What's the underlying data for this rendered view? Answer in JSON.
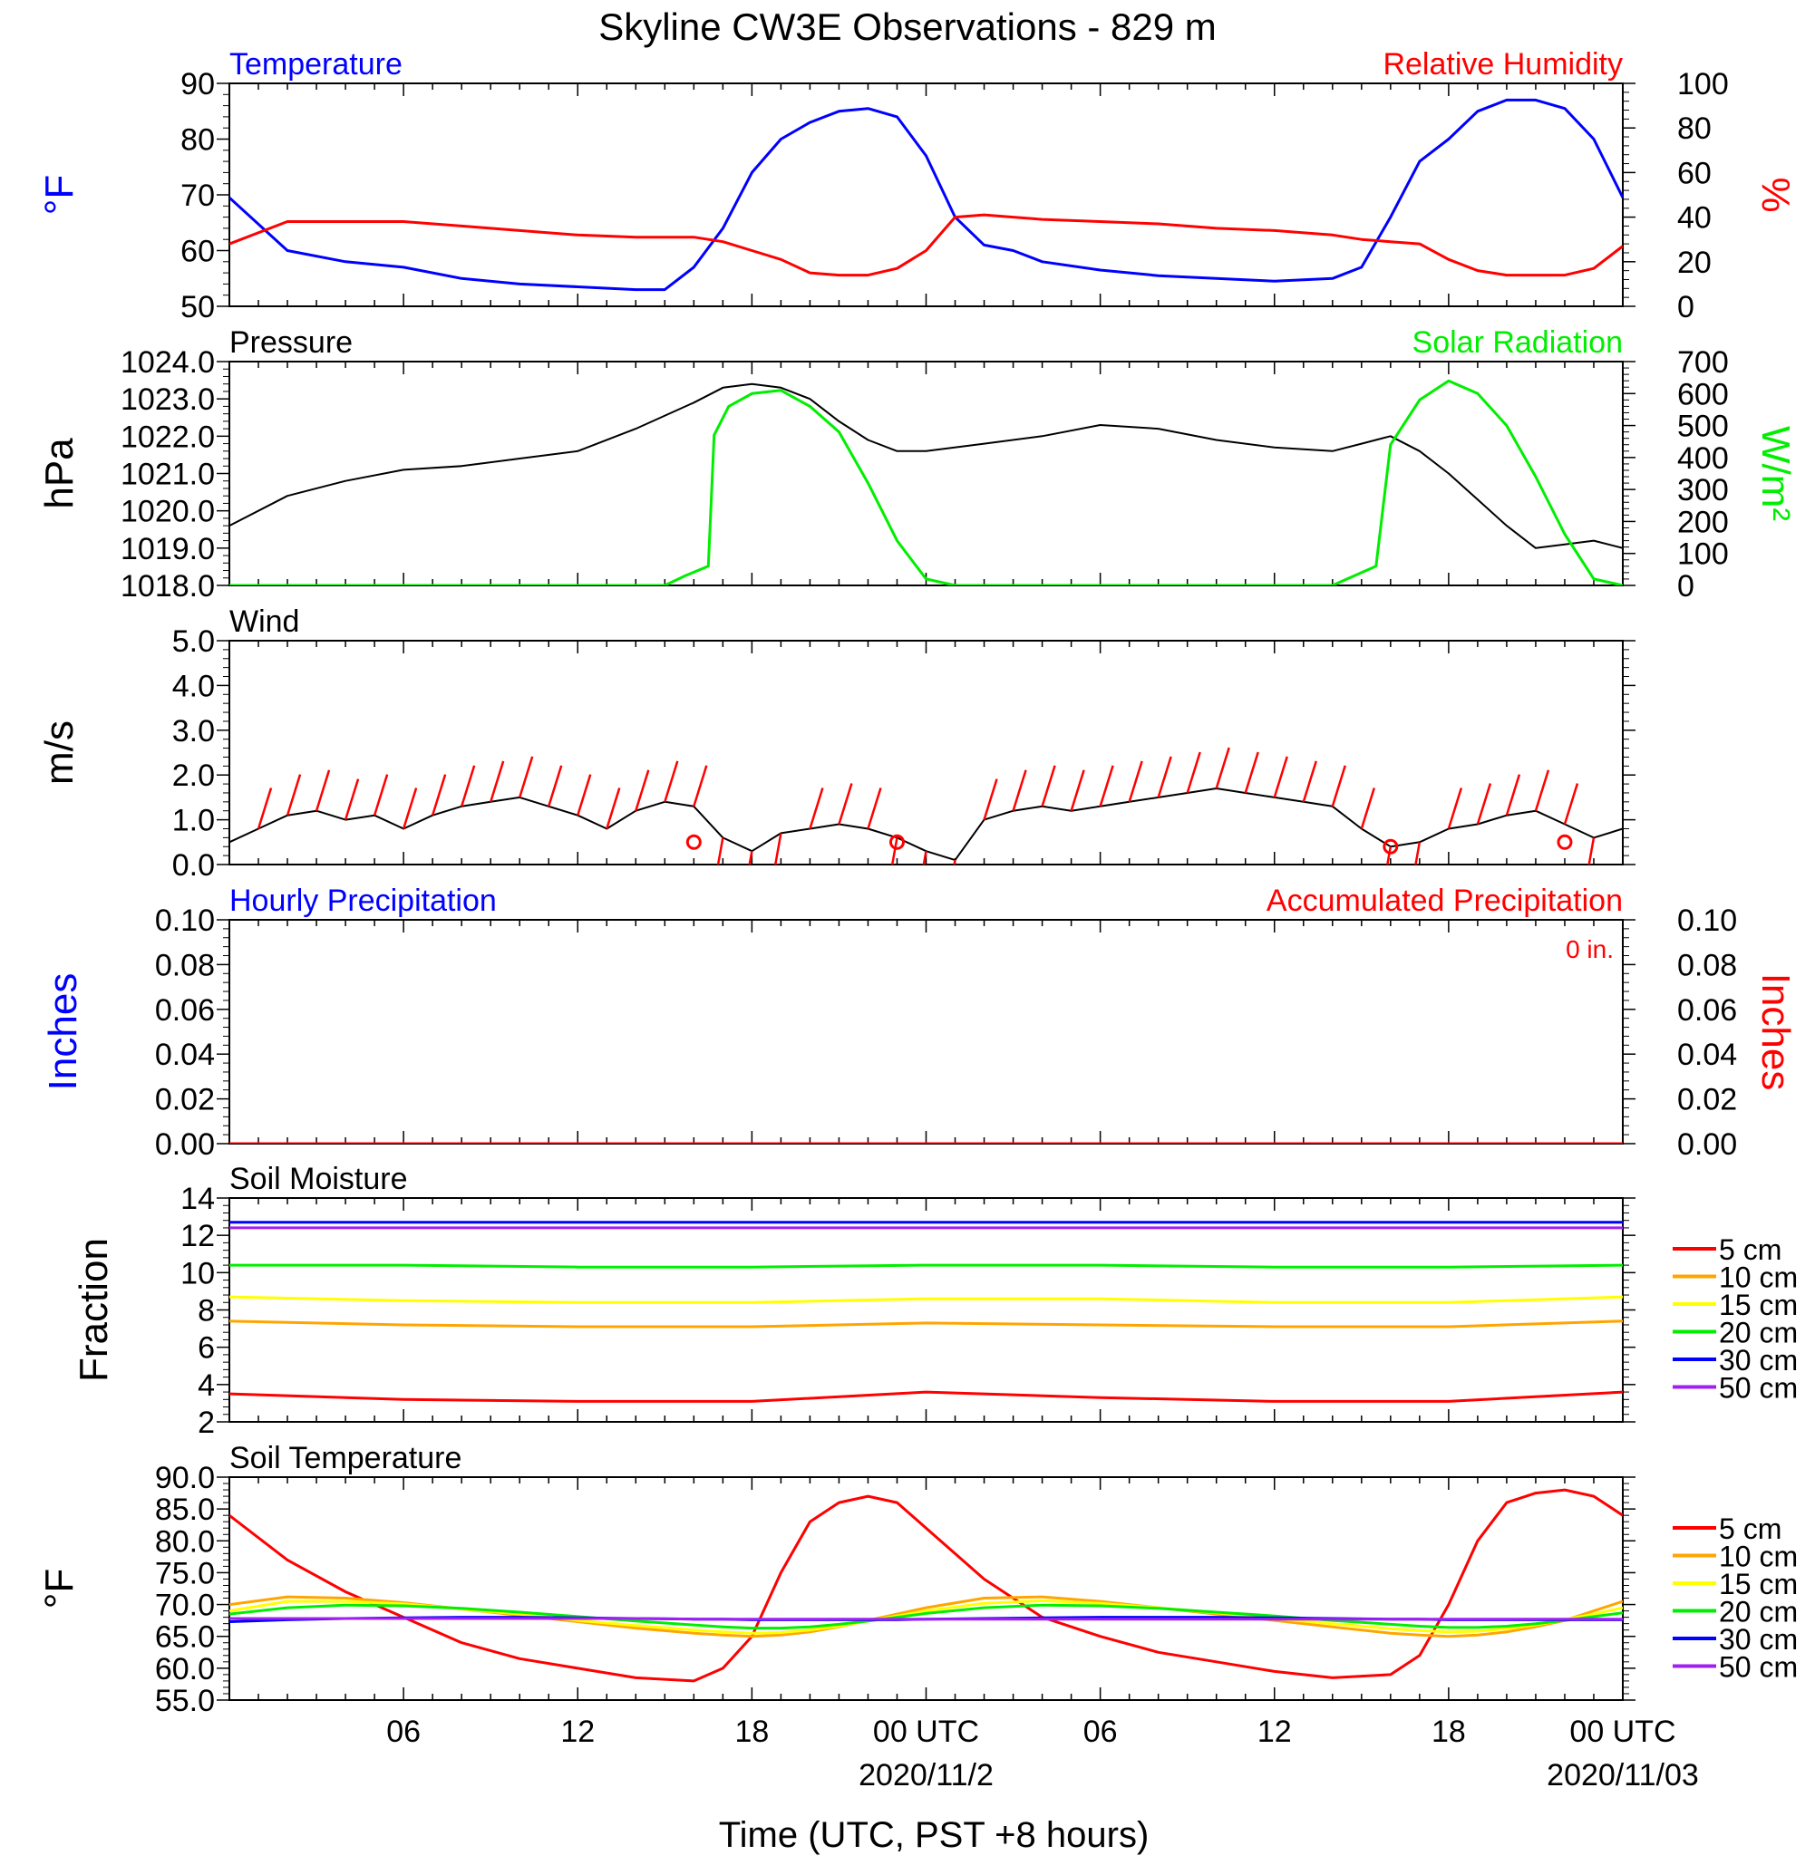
{
  "title": "Skyline CW3E Observations - 829 m",
  "xlabel": "Time (UTC, PST +8 hours)",
  "x_ticks": [
    "06",
    "12",
    "18",
    "00 UTC",
    "06",
    "12",
    "18",
    "00 UTC"
  ],
  "date_labels": [
    "2020/11/2",
    "2020/11/03"
  ],
  "colors": {
    "blue": "#0000ff",
    "red": "#ff0000",
    "green": "#00ee00",
    "black": "#000000",
    "orange": "#ffa500",
    "yellow": "#ffff00",
    "blue30": "#0000ff",
    "purple": "#a020f0"
  },
  "chart_data": [
    {
      "type": "line",
      "panel": "temperature_rh",
      "left_title": "Temperature",
      "right_title": "Relative Humidity",
      "ylabel_left": "°F",
      "ylabel_right": "%",
      "ylim_left": [
        50,
        90
      ],
      "ylim_right": [
        0,
        100
      ],
      "yticks_left": [
        "50",
        "60",
        "70",
        "80",
        "90"
      ],
      "yticks_right": [
        "0",
        "20",
        "40",
        "60",
        "80",
        "100"
      ],
      "x_hours": [
        0,
        2,
        4,
        6,
        8,
        10,
        12,
        14,
        15,
        16,
        17,
        18,
        19,
        20,
        21,
        22,
        23,
        24,
        25,
        26,
        27,
        28,
        30,
        32,
        34,
        36,
        38,
        39,
        40,
        41,
        42,
        43,
        44,
        45,
        46,
        47,
        48
      ],
      "series": [
        {
          "name": "Temperature",
          "axis": "left",
          "color": "blue",
          "values": [
            69.5,
            60,
            58,
            57,
            55,
            54,
            53.5,
            53,
            53,
            57,
            64,
            74,
            80,
            83,
            85,
            85.5,
            84,
            77,
            66,
            61,
            60,
            58,
            56.5,
            55.5,
            55,
            54.5,
            55,
            57,
            66,
            76,
            80,
            85,
            87,
            87,
            85.5,
            80,
            69.5
          ]
        },
        {
          "name": "Relative Humidity",
          "axis": "right",
          "color": "red",
          "values": [
            28,
            38,
            38,
            38,
            36,
            34,
            32,
            31,
            31,
            31,
            29,
            25,
            21,
            15,
            14,
            14,
            17,
            25,
            40,
            41,
            40,
            39,
            38,
            37,
            35,
            34,
            32,
            30,
            29,
            28,
            21,
            16,
            14,
            14,
            14,
            17,
            27
          ]
        }
      ]
    },
    {
      "type": "line",
      "panel": "pressure_solar",
      "left_title": "Pressure",
      "right_title": "Solar Radiation",
      "ylabel_left": "hPa",
      "ylabel_right": "W/m²",
      "ylim_left": [
        1018,
        1024
      ],
      "ylim_right": [
        0,
        700
      ],
      "yticks_left": [
        "1018.0",
        "1019.0",
        "1020.0",
        "1021.0",
        "1022.0",
        "1023.0",
        "1024.0"
      ],
      "yticks_right": [
        "0",
        "100",
        "200",
        "300",
        "400",
        "500",
        "600",
        "700"
      ],
      "x_hours": [
        0,
        2,
        4,
        6,
        8,
        10,
        12,
        14,
        16,
        17,
        18,
        19,
        20,
        21,
        22,
        23,
        24,
        26,
        28,
        30,
        32,
        34,
        36,
        38,
        39,
        40,
        41,
        42,
        43,
        44,
        45,
        46,
        47,
        48
      ],
      "series": [
        {
          "name": "Pressure",
          "axis": "left",
          "color": "black",
          "values": [
            1019.6,
            1020.4,
            1020.8,
            1021.1,
            1021.2,
            1021.4,
            1021.6,
            1022.2,
            1022.9,
            1023.3,
            1023.4,
            1023.3,
            1023.0,
            1022.4,
            1021.9,
            1021.6,
            1021.6,
            1021.8,
            1022.0,
            1022.3,
            1022.2,
            1021.9,
            1021.7,
            1021.6,
            1021.8,
            1022.0,
            1021.6,
            1021.0,
            1020.3,
            1019.6,
            1019.0,
            1019.1,
            1019.2,
            1019.0
          ]
        },
        {
          "name": "Solar Radiation",
          "axis": "right",
          "color": "green",
          "x_hours": [
            0,
            13.5,
            15,
            15.7,
            16.5,
            16.7,
            17.2,
            18,
            19,
            20,
            21,
            22,
            23,
            24,
            25,
            38,
            38.5,
            39.5,
            40,
            41,
            42,
            43,
            44,
            45,
            46,
            47,
            48
          ],
          "values": [
            0,
            0,
            0,
            30,
            60,
            470,
            560,
            600,
            610,
            560,
            480,
            320,
            140,
            20,
            0,
            0,
            20,
            60,
            440,
            580,
            640,
            600,
            500,
            340,
            160,
            20,
            0
          ]
        }
      ]
    },
    {
      "type": "line",
      "panel": "wind",
      "left_title": "Wind",
      "ylabel_left": "m/s",
      "ylim_left": [
        0,
        5
      ],
      "yticks_left": [
        "0.0",
        "1.0",
        "2.0",
        "3.0",
        "4.0",
        "5.0"
      ],
      "x_hours": [
        0,
        1,
        2,
        3,
        4,
        5,
        6,
        7,
        8,
        9,
        10,
        11,
        12,
        13,
        14,
        15,
        16,
        17,
        18,
        19,
        20,
        21,
        22,
        23,
        24,
        25,
        26,
        27,
        28,
        29,
        30,
        31,
        32,
        33,
        34,
        35,
        36,
        37,
        38,
        39,
        40,
        41,
        42,
        43,
        44,
        45,
        46,
        47,
        48
      ],
      "series": [
        {
          "name": "Wind Speed",
          "axis": "left",
          "color": "black",
          "values": [
            0.5,
            0.8,
            1.1,
            1.2,
            1.0,
            1.1,
            0.8,
            1.1,
            1.3,
            1.4,
            1.5,
            1.3,
            1.1,
            0.8,
            1.2,
            1.4,
            1.3,
            0.6,
            0.3,
            0.7,
            0.8,
            0.9,
            0.8,
            0.6,
            0.3,
            0.1,
            1.0,
            1.2,
            1.3,
            1.2,
            1.3,
            1.4,
            1.5,
            1.6,
            1.7,
            1.6,
            1.5,
            1.4,
            1.3,
            0.8,
            0.4,
            0.5,
            0.8,
            0.9,
            1.1,
            1.2,
            0.9,
            0.6,
            0.8
          ]
        }
      ],
      "calm_markers_hours": [
        16,
        23,
        40,
        46
      ]
    },
    {
      "type": "line",
      "panel": "precipitation",
      "left_title": "Hourly Precipitation",
      "right_title": "Accumulated Precipitation",
      "annotation": "0 in.",
      "ylabel_left": "Inches",
      "ylabel_right": "Inches",
      "ylim_left": [
        0,
        0.1
      ],
      "ylim_right": [
        0,
        0.1
      ],
      "yticks_left": [
        "0.00",
        "0.02",
        "0.04",
        "0.06",
        "0.08",
        "0.10"
      ],
      "yticks_right": [
        "0.00",
        "0.02",
        "0.04",
        "0.06",
        "0.08",
        "0.10"
      ],
      "x_hours": [
        0,
        48
      ],
      "series": [
        {
          "name": "Hourly Precipitation",
          "color": "blue",
          "values": [
            0,
            0
          ]
        },
        {
          "name": "Accumulated Precipitation",
          "color": "red",
          "values": [
            0,
            0
          ]
        }
      ]
    },
    {
      "type": "line",
      "panel": "soil_moisture",
      "left_title": "Soil Moisture",
      "ylabel_left": "Fraction",
      "ylim_left": [
        2,
        14
      ],
      "yticks_left": [
        "2",
        "4",
        "6",
        "8",
        "10",
        "12",
        "14"
      ],
      "x_hours": [
        0,
        6,
        12,
        18,
        24,
        30,
        36,
        42,
        48
      ],
      "series": [
        {
          "name": "5 cm",
          "color": "red",
          "values": [
            3.5,
            3.2,
            3.1,
            3.1,
            3.6,
            3.3,
            3.1,
            3.1,
            3.6
          ]
        },
        {
          "name": "10 cm",
          "color": "orange",
          "values": [
            7.4,
            7.2,
            7.1,
            7.1,
            7.3,
            7.2,
            7.1,
            7.1,
            7.4
          ]
        },
        {
          "name": "15 cm",
          "color": "yellow",
          "values": [
            8.7,
            8.5,
            8.4,
            8.4,
            8.6,
            8.6,
            8.4,
            8.4,
            8.7
          ]
        },
        {
          "name": "20 cm",
          "color": "green",
          "values": [
            10.4,
            10.4,
            10.3,
            10.3,
            10.4,
            10.4,
            10.3,
            10.3,
            10.4
          ]
        },
        {
          "name": "30 cm",
          "color": "blue30",
          "values": [
            12.7,
            12.7,
            12.7,
            12.7,
            12.7,
            12.7,
            12.7,
            12.7,
            12.7
          ]
        },
        {
          "name": "50 cm",
          "color": "purple",
          "values": [
            12.4,
            12.4,
            12.4,
            12.4,
            12.4,
            12.4,
            12.4,
            12.4,
            12.4
          ]
        }
      ]
    },
    {
      "type": "line",
      "panel": "soil_temperature",
      "left_title": "Soil Temperature",
      "ylabel_left": "°F",
      "ylim_left": [
        55,
        90
      ],
      "yticks_left": [
        "55.0",
        "60.0",
        "65.0",
        "70.0",
        "75.0",
        "80.0",
        "85.0",
        "90.0"
      ],
      "x_hours": [
        0,
        2,
        4,
        6,
        8,
        10,
        12,
        14,
        16,
        17,
        18,
        19,
        20,
        21,
        22,
        23,
        24,
        26,
        28,
        30,
        32,
        34,
        36,
        38,
        40,
        41,
        42,
        43,
        44,
        45,
        46,
        47,
        48
      ],
      "series": [
        {
          "name": "5 cm",
          "color": "red",
          "values": [
            84,
            77,
            72,
            68,
            64,
            61.5,
            60,
            58.5,
            58,
            60,
            65,
            75,
            83,
            86,
            87,
            86,
            82,
            74,
            68,
            65,
            62.5,
            61,
            59.5,
            58.5,
            59,
            62,
            70,
            80,
            86,
            87.5,
            88,
            87,
            84
          ]
        },
        {
          "name": "10 cm",
          "color": "orange",
          "values": [
            70,
            71.2,
            71,
            70.3,
            69.3,
            68.3,
            67.3,
            66.3,
            65.5,
            65.2,
            65,
            65.2,
            65.7,
            66.5,
            67.5,
            68.5,
            69.5,
            71,
            71.2,
            70.5,
            69.5,
            68.5,
            67.5,
            66.5,
            65.5,
            65.2,
            65,
            65.2,
            65.7,
            66.5,
            67.5,
            69,
            70.5
          ]
        },
        {
          "name": "15 cm",
          "color": "yellow",
          "values": [
            69,
            70.5,
            70.5,
            70.1,
            69.3,
            68.5,
            67.5,
            66.7,
            66,
            65.7,
            65.5,
            65.6,
            66,
            66.6,
            67.4,
            68.2,
            69,
            70.2,
            70.6,
            70.2,
            69.5,
            68.7,
            67.8,
            67,
            66.2,
            65.9,
            65.7,
            65.8,
            66.2,
            66.8,
            67.6,
            68.5,
            69.5
          ]
        },
        {
          "name": "20 cm",
          "color": "green",
          "values": [
            68.5,
            69.5,
            69.9,
            69.8,
            69.4,
            68.8,
            68.1,
            67.4,
            66.8,
            66.5,
            66.3,
            66.3,
            66.5,
            66.9,
            67.4,
            68,
            68.6,
            69.5,
            69.9,
            69.8,
            69.4,
            68.8,
            68.2,
            67.5,
            66.9,
            66.6,
            66.4,
            66.4,
            66.6,
            67,
            67.5,
            68.1,
            68.7
          ]
        },
        {
          "name": "30 cm",
          "color": "blue30",
          "values": [
            67.3,
            67.6,
            67.8,
            67.9,
            68,
            68,
            67.9,
            67.8,
            67.7,
            67.7,
            67.6,
            67.6,
            67.6,
            67.6,
            67.6,
            67.6,
            67.7,
            67.8,
            67.9,
            68,
            68,
            68,
            67.9,
            67.8,
            67.7,
            67.7,
            67.6,
            67.6,
            67.6,
            67.6,
            67.6,
            67.6,
            67.6
          ]
        },
        {
          "name": "50 cm",
          "color": "purple",
          "values": [
            67.8,
            67.8,
            67.8,
            67.8,
            67.8,
            67.8,
            67.8,
            67.8,
            67.7,
            67.7,
            67.7,
            67.7,
            67.7,
            67.7,
            67.7,
            67.7,
            67.7,
            67.7,
            67.7,
            67.7,
            67.7,
            67.7,
            67.7,
            67.7,
            67.7,
            67.7,
            67.7,
            67.7,
            67.7,
            67.7,
            67.7,
            67.7,
            67.7
          ]
        }
      ]
    }
  ]
}
